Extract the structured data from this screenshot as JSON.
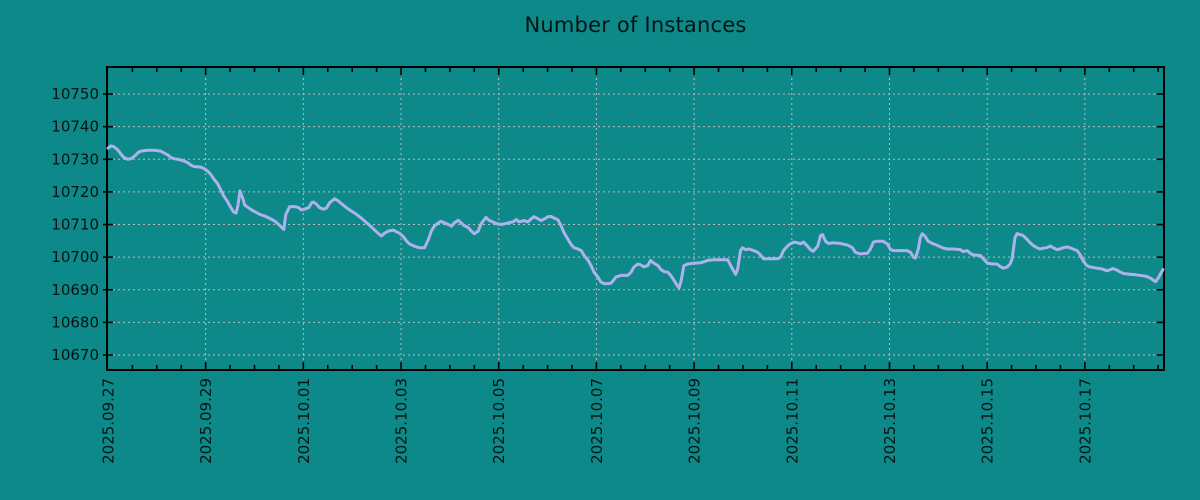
{
  "colors": {
    "background": "#0E8989",
    "line": "#AEB2EC",
    "grid": "#BDBDBD",
    "axis": "#000000",
    "text": "#041414"
  },
  "chart_data": {
    "type": "line",
    "title": "Number of Instances",
    "xlabel": "",
    "ylabel": "",
    "legend": "none",
    "grid": true,
    "x_axis_kind": "date",
    "x_tick_labels": [
      "2025.09.27",
      "2025.09.29",
      "2025.10.01",
      "2025.10.03",
      "2025.10.05",
      "2025.10.07",
      "2025.10.09",
      "2025.10.11",
      "2025.10.13",
      "2025.10.15",
      "2025.10.17"
    ],
    "x_tick_positions_days": [
      0,
      2,
      4,
      6,
      8,
      10,
      12,
      14,
      16,
      18,
      20
    ],
    "x_minor_tick_step_days": 0.5,
    "xlim_days": [
      -0.02,
      21.62
    ],
    "y_ticks": [
      10670,
      10680,
      10690,
      10700,
      10710,
      10720,
      10730,
      10740,
      10750
    ],
    "ylim": [
      10665.4,
      10758.3
    ],
    "series": [
      {
        "name": "instances",
        "color": "#AEB2EC",
        "points": [
          [
            0,
            10733.4
          ],
          [
            0.06,
            10734.1
          ],
          [
            0.12,
            10733.9
          ],
          [
            0.2,
            10732.9
          ],
          [
            0.27,
            10731.5
          ],
          [
            0.33,
            10730.5
          ],
          [
            0.41,
            10730
          ],
          [
            0.47,
            10730.2
          ],
          [
            0.55,
            10731
          ],
          [
            0.61,
            10732
          ],
          [
            0.67,
            10732.5
          ],
          [
            0.82,
            10732.8
          ],
          [
            0.94,
            10732.8
          ],
          [
            1.08,
            10732.5
          ],
          [
            1.14,
            10732
          ],
          [
            1.23,
            10731.3
          ],
          [
            1.29,
            10730.5
          ],
          [
            1.35,
            10730.2
          ],
          [
            1.43,
            10730
          ],
          [
            1.49,
            10729.8
          ],
          [
            1.55,
            10729.5
          ],
          [
            1.63,
            10729
          ],
          [
            1.7,
            10728.2
          ],
          [
            1.76,
            10727.8
          ],
          [
            1.9,
            10727.6
          ],
          [
            1.96,
            10727.2
          ],
          [
            2.04,
            10726.4
          ],
          [
            2.1,
            10725.4
          ],
          [
            2.17,
            10723.9
          ],
          [
            2.25,
            10722.4
          ],
          [
            2.31,
            10720.6
          ],
          [
            2.37,
            10718.8
          ],
          [
            2.45,
            10717
          ],
          [
            2.51,
            10715.3
          ],
          [
            2.57,
            10713.9
          ],
          [
            2.62,
            10713.5
          ],
          [
            2.66,
            10715.7
          ],
          [
            2.7,
            10720.3
          ],
          [
            2.76,
            10718
          ],
          [
            2.8,
            10716
          ],
          [
            2.86,
            10715.3
          ],
          [
            2.94,
            10714.5
          ],
          [
            3.11,
            10713.1
          ],
          [
            3.21,
            10712.6
          ],
          [
            3.31,
            10711.9
          ],
          [
            3.41,
            10711.1
          ],
          [
            3.49,
            10710.1
          ],
          [
            3.6,
            10708.5
          ],
          [
            3.64,
            10713.1
          ],
          [
            3.72,
            10715.5
          ],
          [
            3.82,
            10715.5
          ],
          [
            3.9,
            10715.2
          ],
          [
            3.96,
            10714.5
          ],
          [
            4.02,
            10714.7
          ],
          [
            4.11,
            10715.2
          ],
          [
            4.17,
            10716.7
          ],
          [
            4.21,
            10716.9
          ],
          [
            4.27,
            10716.2
          ],
          [
            4.33,
            10715.2
          ],
          [
            4.41,
            10714.7
          ],
          [
            4.47,
            10715
          ],
          [
            4.54,
            10716.7
          ],
          [
            4.64,
            10717.9
          ],
          [
            4.72,
            10717.2
          ],
          [
            4.78,
            10716.4
          ],
          [
            4.88,
            10715.2
          ],
          [
            4.99,
            10714.1
          ],
          [
            5.09,
            10713.1
          ],
          [
            5.19,
            10711.9
          ],
          [
            5.29,
            10710.6
          ],
          [
            5.39,
            10709.3
          ],
          [
            5.46,
            10708.3
          ],
          [
            5.54,
            10707.2
          ],
          [
            5.6,
            10706.5
          ],
          [
            5.66,
            10707.3
          ],
          [
            5.74,
            10708
          ],
          [
            5.84,
            10708.3
          ],
          [
            5.9,
            10707.8
          ],
          [
            5.97,
            10707.3
          ],
          [
            6.05,
            10706.2
          ],
          [
            6.11,
            10705
          ],
          [
            6.17,
            10704.1
          ],
          [
            6.27,
            10703.4
          ],
          [
            6.37,
            10702.9
          ],
          [
            6.48,
            10702.9
          ],
          [
            6.56,
            10705.4
          ],
          [
            6.62,
            10708
          ],
          [
            6.68,
            10709.5
          ],
          [
            6.76,
            10710.5
          ],
          [
            6.82,
            10711
          ],
          [
            6.89,
            10710.5
          ],
          [
            6.97,
            10710
          ],
          [
            7.03,
            10709.5
          ],
          [
            7.09,
            10710.5
          ],
          [
            7.17,
            10711.3
          ],
          [
            7.23,
            10710.5
          ],
          [
            7.29,
            10709.7
          ],
          [
            7.38,
            10709
          ],
          [
            7.44,
            10708
          ],
          [
            7.5,
            10707.2
          ],
          [
            7.58,
            10708
          ],
          [
            7.64,
            10710.3
          ],
          [
            7.74,
            10712.2
          ],
          [
            7.8,
            10711.3
          ],
          [
            7.89,
            10710.7
          ],
          [
            7.95,
            10710.3
          ],
          [
            8.05,
            10710
          ],
          [
            8.19,
            10710.5
          ],
          [
            8.29,
            10710.8
          ],
          [
            8.36,
            10711.5
          ],
          [
            8.42,
            10710.8
          ],
          [
            8.52,
            10711.2
          ],
          [
            8.6,
            10710.8
          ],
          [
            8.66,
            10711.7
          ],
          [
            8.72,
            10712.4
          ],
          [
            8.81,
            10711.7
          ],
          [
            8.87,
            10711.2
          ],
          [
            8.93,
            10711.7
          ],
          [
            9.01,
            10712.4
          ],
          [
            9.07,
            10712.5
          ],
          [
            9.13,
            10712
          ],
          [
            9.21,
            10711.5
          ],
          [
            9.28,
            10709.5
          ],
          [
            9.34,
            10707.4
          ],
          [
            9.42,
            10705.4
          ],
          [
            9.48,
            10703.9
          ],
          [
            9.54,
            10702.9
          ],
          [
            9.62,
            10702.5
          ],
          [
            9.69,
            10702
          ],
          [
            9.75,
            10700.5
          ],
          [
            9.83,
            10699
          ],
          [
            9.89,
            10697.4
          ],
          [
            9.95,
            10695.4
          ],
          [
            10.03,
            10693.9
          ],
          [
            10.09,
            10692.4
          ],
          [
            10.15,
            10691.9
          ],
          [
            10.24,
            10691.9
          ],
          [
            10.3,
            10692
          ],
          [
            10.4,
            10693.9
          ],
          [
            10.5,
            10694.4
          ],
          [
            10.64,
            10694.4
          ],
          [
            10.71,
            10695.4
          ],
          [
            10.77,
            10697
          ],
          [
            10.85,
            10697.9
          ],
          [
            10.91,
            10697.6
          ],
          [
            10.97,
            10697
          ],
          [
            11.05,
            10697.4
          ],
          [
            11.11,
            10699
          ],
          [
            11.17,
            10698.2
          ],
          [
            11.26,
            10697.4
          ],
          [
            11.32,
            10696.2
          ],
          [
            11.38,
            10695.6
          ],
          [
            11.46,
            10695.4
          ],
          [
            11.52,
            10694.4
          ],
          [
            11.58,
            10693.1
          ],
          [
            11.67,
            10690.9
          ],
          [
            11.69,
            10690.6
          ],
          [
            11.73,
            10692.4
          ],
          [
            11.79,
            10697.4
          ],
          [
            11.87,
            10697.9
          ],
          [
            11.99,
            10698.1
          ],
          [
            12.14,
            10698.3
          ],
          [
            12.28,
            10699
          ],
          [
            12.4,
            10699.2
          ],
          [
            12.54,
            10699.2
          ],
          [
            12.69,
            10699.2
          ],
          [
            12.75,
            10697.4
          ],
          [
            12.85,
            10694.7
          ],
          [
            12.89,
            10696.2
          ],
          [
            12.95,
            10702
          ],
          [
            12.99,
            10702.9
          ],
          [
            13.05,
            10702.3
          ],
          [
            13.12,
            10702.5
          ],
          [
            13.22,
            10702
          ],
          [
            13.3,
            10701.5
          ],
          [
            13.36,
            10700.7
          ],
          [
            13.42,
            10699.5
          ],
          [
            13.57,
            10699.5
          ],
          [
            13.71,
            10699.5
          ],
          [
            13.77,
            10700
          ],
          [
            13.83,
            10702
          ],
          [
            13.91,
            10703.4
          ],
          [
            13.97,
            10704.1
          ],
          [
            14.04,
            10704.6
          ],
          [
            14.12,
            10704.4
          ],
          [
            14.18,
            10704.1
          ],
          [
            14.24,
            10704.6
          ],
          [
            14.32,
            10703.4
          ],
          [
            14.38,
            10702.3
          ],
          [
            14.44,
            10701.8
          ],
          [
            14.53,
            10703.4
          ],
          [
            14.59,
            10706.6
          ],
          [
            14.63,
            10706.9
          ],
          [
            14.69,
            10704.9
          ],
          [
            14.75,
            10704.2
          ],
          [
            14.85,
            10704.4
          ],
          [
            15,
            10704.2
          ],
          [
            15.14,
            10703.7
          ],
          [
            15.24,
            10702.9
          ],
          [
            15.3,
            10701.5
          ],
          [
            15.4,
            10701
          ],
          [
            15.55,
            10701.2
          ],
          [
            15.61,
            10702.5
          ],
          [
            15.67,
            10704.6
          ],
          [
            15.75,
            10704.9
          ],
          [
            15.87,
            10704.9
          ],
          [
            15.96,
            10704
          ],
          [
            16.02,
            10702.3
          ],
          [
            16.08,
            10702
          ],
          [
            16.22,
            10702
          ],
          [
            16.36,
            10702
          ],
          [
            16.43,
            10701.5
          ],
          [
            16.49,
            10700
          ],
          [
            16.53,
            10699.7
          ],
          [
            16.59,
            10702.5
          ],
          [
            16.63,
            10706
          ],
          [
            16.67,
            10707.2
          ],
          [
            16.73,
            10706.4
          ],
          [
            16.79,
            10704.9
          ],
          [
            16.88,
            10704.2
          ],
          [
            16.98,
            10703.6
          ],
          [
            17.08,
            10702.9
          ],
          [
            17.18,
            10702.5
          ],
          [
            17.3,
            10702.5
          ],
          [
            17.45,
            10702.3
          ],
          [
            17.51,
            10701.7
          ],
          [
            17.59,
            10702
          ],
          [
            17.65,
            10701.2
          ],
          [
            17.71,
            10700.7
          ],
          [
            17.86,
            10700.5
          ],
          [
            17.92,
            10699.5
          ],
          [
            18,
            10698.2
          ],
          [
            18.1,
            10697.9
          ],
          [
            18.2,
            10697.9
          ],
          [
            18.26,
            10697.2
          ],
          [
            18.33,
            10696.6
          ],
          [
            18.41,
            10697
          ],
          [
            18.47,
            10697.9
          ],
          [
            18.51,
            10699.5
          ],
          [
            18.57,
            10706
          ],
          [
            18.61,
            10707.2
          ],
          [
            18.67,
            10706.9
          ],
          [
            18.73,
            10706.7
          ],
          [
            18.82,
            10705.4
          ],
          [
            18.88,
            10704.4
          ],
          [
            18.94,
            10703.6
          ],
          [
            19.02,
            10702.9
          ],
          [
            19.08,
            10702.5
          ],
          [
            19.14,
            10702.7
          ],
          [
            19.22,
            10702.9
          ],
          [
            19.29,
            10703.4
          ],
          [
            19.35,
            10702.9
          ],
          [
            19.43,
            10702.3
          ],
          [
            19.49,
            10702.5
          ],
          [
            19.55,
            10702.9
          ],
          [
            19.63,
            10703.1
          ],
          [
            19.69,
            10702.9
          ],
          [
            19.76,
            10702.5
          ],
          [
            19.84,
            10702
          ],
          [
            19.9,
            10700.8
          ],
          [
            19.96,
            10699
          ],
          [
            20.04,
            10697.4
          ],
          [
            20.1,
            10697
          ],
          [
            20.25,
            10696.6
          ],
          [
            20.31,
            10696.5
          ],
          [
            20.37,
            10696.3
          ],
          [
            20.45,
            10695.8
          ],
          [
            20.51,
            10696.1
          ],
          [
            20.57,
            10696.5
          ],
          [
            20.65,
            10696.1
          ],
          [
            20.71,
            10695.5
          ],
          [
            20.79,
            10695
          ],
          [
            20.9,
            10694.8
          ],
          [
            21.04,
            10694.6
          ],
          [
            21.18,
            10694.3
          ],
          [
            21.26,
            10694.1
          ],
          [
            21.35,
            10693.5
          ],
          [
            21.41,
            10692.8
          ],
          [
            21.45,
            10692.5
          ],
          [
            21.51,
            10693.8
          ],
          [
            21.6,
            10696.2
          ]
        ]
      }
    ]
  }
}
